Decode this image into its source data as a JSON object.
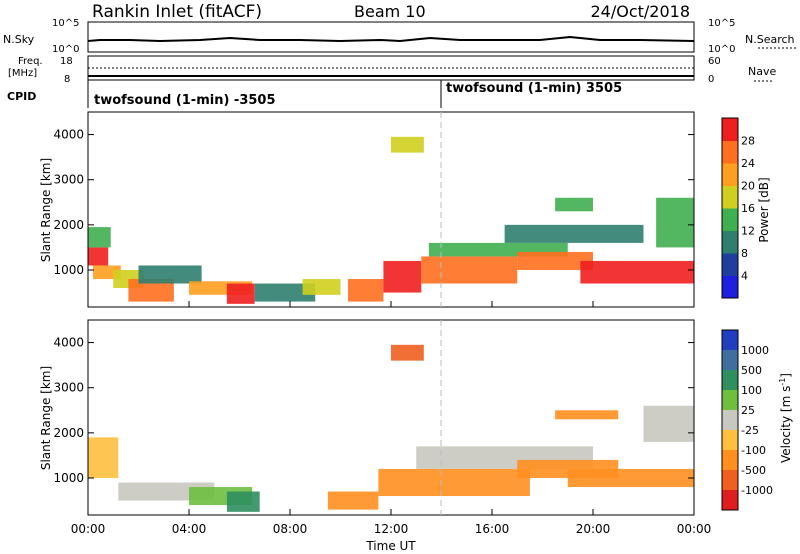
{
  "header": {
    "station": "Rankin Inlet (fitACF)",
    "beam": "Beam 10",
    "date": "24/Oct/2018"
  },
  "noise_panel": {
    "left_label": "N.Sky",
    "right_label": "N.Search",
    "left_ticks": [
      "10^5",
      "10^0"
    ],
    "right_ticks": [
      "10^5",
      "10^0"
    ]
  },
  "freq_panel": {
    "left_label_line1": "Freq.",
    "left_label_line2": "[MHz]",
    "right_label": "Nave",
    "left_ticks": [
      "18",
      "8"
    ],
    "right_ticks": [
      "60",
      "0"
    ]
  },
  "cpid_panel": {
    "label": "CPID",
    "segment1": "twofsound (1-min) -3505",
    "segment2": "twofsound (1-min) 3505"
  },
  "axes": {
    "ylabel": "Slant Range [km]",
    "xlabel": "Time UT",
    "y_ticks": [
      "1000",
      "2000",
      "3000",
      "4000"
    ],
    "x_ticks": [
      "00:00",
      "04:00",
      "08:00",
      "12:00",
      "16:00",
      "20:00",
      "00:00"
    ]
  },
  "colorbars": {
    "power": {
      "label": "Power [dB]",
      "ticks": [
        "4",
        "8",
        "12",
        "16",
        "20",
        "24",
        "28"
      ],
      "colors": [
        "#1f1fe0",
        "#1f3f9f",
        "#2f7f6f",
        "#3faf4f",
        "#cfcf1f",
        "#ff9f1f",
        "#ff6f1f",
        "#ef1f1f"
      ]
    },
    "velocity": {
      "label_main": "Velocity [m s",
      "label_sup": "-1",
      "label_end": "]",
      "ticks": [
        "1000",
        "500",
        "100",
        "25",
        "-25",
        "-100",
        "-500",
        "-1000"
      ],
      "colors": [
        "#1f3fbf",
        "#3f6f9f",
        "#2f8f5f",
        "#6fbf3f",
        "#c8c8c0",
        "#ffbf3f",
        "#ff8f1f",
        "#ef5f1f",
        "#df1f1f"
      ]
    }
  },
  "chart_data": [
    {
      "type": "heatmap",
      "title": "Power [dB]",
      "xlabel": "Time UT",
      "ylabel": "Slant Range [km]",
      "xlim": [
        0,
        24
      ],
      "ylim": [
        180,
        4500
      ],
      "zlim": [
        0,
        30
      ],
      "cells": [
        {
          "t0": 0.0,
          "t1": 0.8,
          "r0": 1100,
          "r1": 1500,
          "v": 28
        },
        {
          "t0": 0.0,
          "t1": 0.9,
          "r0": 1500,
          "r1": 1950,
          "v": 14
        },
        {
          "t0": 0.2,
          "t1": 1.3,
          "r0": 800,
          "r1": 1100,
          "v": 22
        },
        {
          "t0": 1.0,
          "t1": 2.2,
          "r0": 600,
          "r1": 1000,
          "v": 18
        },
        {
          "t0": 1.6,
          "t1": 3.4,
          "r0": 300,
          "r1": 800,
          "v": 26
        },
        {
          "t0": 2.0,
          "t1": 4.5,
          "r0": 700,
          "r1": 1100,
          "v": 8
        },
        {
          "t0": 4.0,
          "t1": 6.5,
          "r0": 450,
          "r1": 750,
          "v": 20
        },
        {
          "t0": 5.5,
          "t1": 6.6,
          "r0": 250,
          "r1": 700,
          "v": 28
        },
        {
          "t0": 6.6,
          "t1": 9.0,
          "r0": 300,
          "r1": 700,
          "v": 10
        },
        {
          "t0": 8.5,
          "t1": 10.0,
          "r0": 450,
          "r1": 800,
          "v": 16
        },
        {
          "t0": 10.3,
          "t1": 11.7,
          "r0": 300,
          "r1": 800,
          "v": 26
        },
        {
          "t0": 11.7,
          "t1": 13.2,
          "r0": 500,
          "r1": 1200,
          "v": 28
        },
        {
          "t0": 12.0,
          "t1": 13.3,
          "r0": 3600,
          "r1": 3950,
          "v": 18
        },
        {
          "t0": 13.2,
          "t1": 17.0,
          "r0": 700,
          "r1": 1300,
          "v": 26
        },
        {
          "t0": 13.5,
          "t1": 19.0,
          "r0": 1300,
          "r1": 1600,
          "v": 12
        },
        {
          "t0": 17.0,
          "t1": 20.0,
          "r0": 1000,
          "r1": 1400,
          "v": 24
        },
        {
          "t0": 19.5,
          "t1": 24.0,
          "r0": 700,
          "r1": 1200,
          "v": 28
        },
        {
          "t0": 16.5,
          "t1": 22.0,
          "r0": 1600,
          "r1": 2000,
          "v": 10
        },
        {
          "t0": 18.5,
          "t1": 20.0,
          "r0": 2300,
          "r1": 2600,
          "v": 12
        },
        {
          "t0": 22.5,
          "t1": 24.0,
          "r0": 1500,
          "r1": 2600,
          "v": 14
        }
      ]
    },
    {
      "type": "heatmap",
      "title": "Velocity [m s-1]",
      "xlabel": "Time UT",
      "ylabel": "Slant Range [km]",
      "xlim": [
        0,
        24
      ],
      "ylim": [
        180,
        4500
      ],
      "zlim": [
        -1000,
        1000
      ],
      "cells": [
        {
          "t0": 0.0,
          "t1": 1.2,
          "r0": 1000,
          "r1": 1900,
          "v": -80
        },
        {
          "t0": 1.2,
          "t1": 5.0,
          "r0": 500,
          "r1": 900,
          "v": -10
        },
        {
          "t0": 4.0,
          "t1": 6.5,
          "r0": 400,
          "r1": 800,
          "v": 40
        },
        {
          "t0": 5.5,
          "t1": 6.8,
          "r0": 250,
          "r1": 700,
          "v": 150
        },
        {
          "t0": 9.5,
          "t1": 11.5,
          "r0": 300,
          "r1": 700,
          "v": -150
        },
        {
          "t0": 12.0,
          "t1": 13.3,
          "r0": 3600,
          "r1": 3950,
          "v": -600
        },
        {
          "t0": 11.5,
          "t1": 17.5,
          "r0": 600,
          "r1": 1200,
          "v": -400
        },
        {
          "t0": 13.0,
          "t1": 20.0,
          "r0": 1200,
          "r1": 1700,
          "v": 0
        },
        {
          "t0": 17.0,
          "t1": 21.0,
          "r0": 1000,
          "r1": 1400,
          "v": -200
        },
        {
          "t0": 18.5,
          "t1": 21.0,
          "r0": 2300,
          "r1": 2500,
          "v": -300
        },
        {
          "t0": 19.0,
          "t1": 24.0,
          "r0": 800,
          "r1": 1200,
          "v": -150
        },
        {
          "t0": 22.0,
          "t1": 24.0,
          "r0": 1800,
          "r1": 2600,
          "v": 0
        }
      ]
    }
  ]
}
